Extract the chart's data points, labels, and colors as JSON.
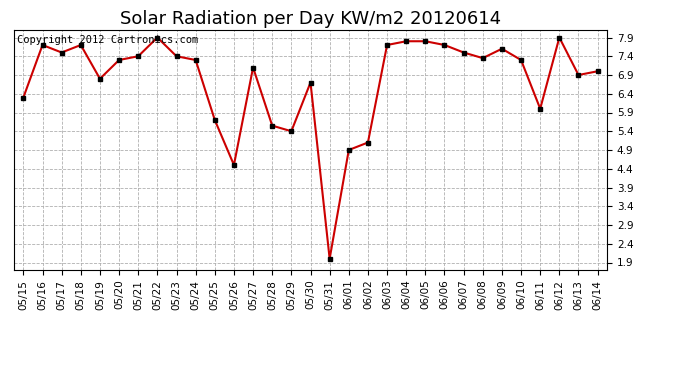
{
  "title": "Solar Radiation per Day KW/m2 20120614",
  "copyright_text": "Copyright 2012 Cartronics.com",
  "dates": [
    "05/15",
    "05/16",
    "05/17",
    "05/18",
    "05/19",
    "05/20",
    "05/21",
    "05/22",
    "05/23",
    "05/24",
    "05/25",
    "05/26",
    "05/27",
    "05/28",
    "05/29",
    "05/30",
    "05/31",
    "06/01",
    "06/02",
    "06/03",
    "06/04",
    "06/05",
    "06/06",
    "06/07",
    "06/08",
    "06/09",
    "06/10",
    "06/11",
    "06/12",
    "06/13",
    "06/14"
  ],
  "values": [
    6.3,
    7.7,
    7.5,
    7.7,
    6.8,
    7.3,
    7.4,
    7.9,
    7.4,
    7.3,
    5.7,
    4.5,
    7.1,
    5.55,
    5.4,
    6.7,
    2.0,
    4.9,
    5.1,
    7.7,
    7.8,
    7.8,
    7.7,
    7.5,
    7.35,
    7.6,
    7.3,
    6.0,
    7.9,
    6.9,
    7.0
  ],
  "ylim": [
    1.7,
    8.1
  ],
  "yticks": [
    1.9,
    2.4,
    2.9,
    3.4,
    3.9,
    4.4,
    4.9,
    5.4,
    5.9,
    6.4,
    6.9,
    7.4,
    7.9
  ],
  "line_color": "#cc0000",
  "marker_color": "#000000",
  "bg_color": "#ffffff",
  "plot_bg_color": "#ffffff",
  "grid_color": "#b0b0b0",
  "title_fontsize": 13,
  "tick_fontsize": 7.5,
  "copyright_fontsize": 7.5
}
